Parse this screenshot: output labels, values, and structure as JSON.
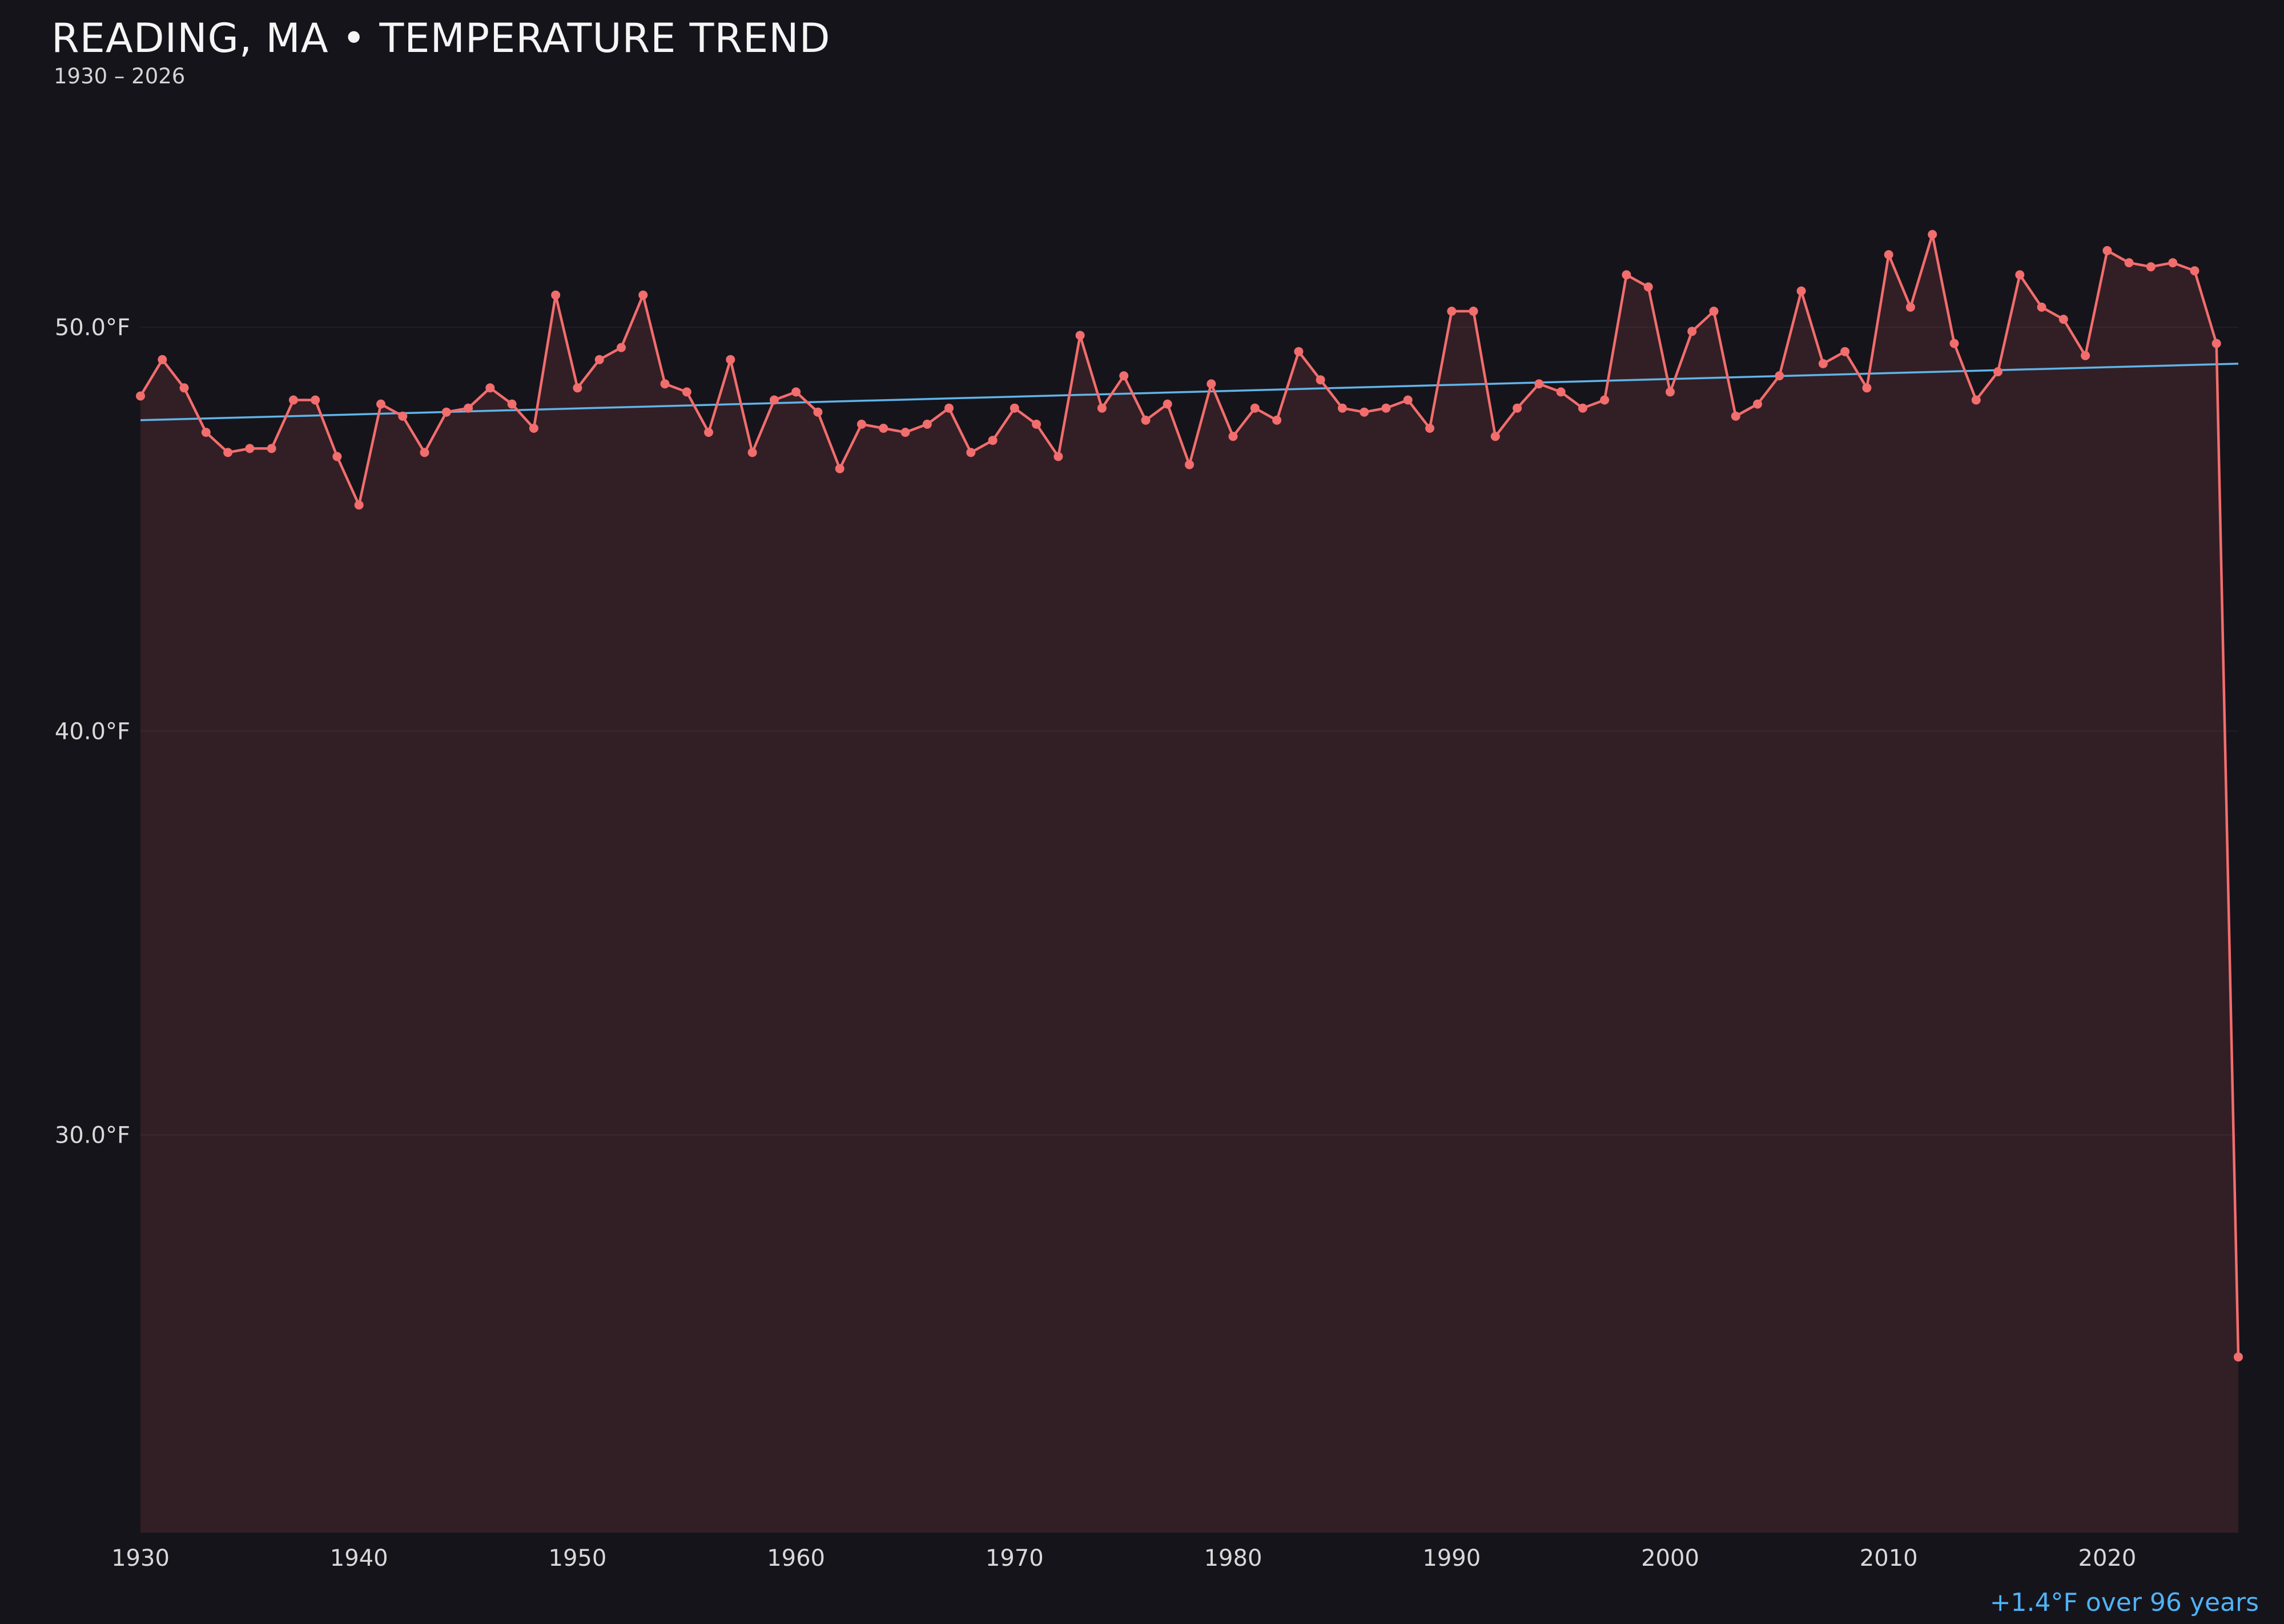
{
  "header": {
    "title": "READING, MA • TEMPERATURE TREND",
    "subtitle": "1930 – 2026"
  },
  "annotation": {
    "trend_summary": "+1.4°F over 96 years"
  },
  "colors": {
    "background": "#16141b",
    "line": "#f26d6d",
    "area_fill": "rgba(242,109,109,0.13)",
    "trend_line": "#5fb4e8",
    "annotation_text": "#4fb3f6",
    "tick_text": "#d9d9d9",
    "grid_line": "rgba(255,255,255,0.05)"
  },
  "chart_data": {
    "type": "line",
    "title": "READING, MA • TEMPERATURE TREND",
    "subtitle": "1930 – 2026",
    "xlabel": "",
    "ylabel": "",
    "xlim": [
      1930,
      2026
    ],
    "ylim": [
      20.15,
      55.25
    ],
    "grid": "faint-horizontal",
    "legend": "none",
    "x": [
      1930,
      1931,
      1932,
      1933,
      1934,
      1935,
      1936,
      1937,
      1938,
      1939,
      1940,
      1941,
      1942,
      1943,
      1944,
      1945,
      1946,
      1947,
      1948,
      1949,
      1950,
      1951,
      1952,
      1953,
      1954,
      1955,
      1956,
      1957,
      1958,
      1959,
      1960,
      1961,
      1962,
      1963,
      1964,
      1965,
      1966,
      1967,
      1968,
      1969,
      1970,
      1971,
      1972,
      1973,
      1974,
      1975,
      1976,
      1977,
      1978,
      1979,
      1980,
      1981,
      1982,
      1983,
      1984,
      1985,
      1986,
      1987,
      1988,
      1989,
      1990,
      1991,
      1992,
      1993,
      1994,
      1995,
      1996,
      1997,
      1998,
      1999,
      2000,
      2001,
      2002,
      2003,
      2004,
      2005,
      2006,
      2007,
      2008,
      2009,
      2010,
      2011,
      2012,
      2013,
      2014,
      2015,
      2016,
      2017,
      2018,
      2019,
      2020,
      2021,
      2022,
      2023,
      2024,
      2025,
      2026
    ],
    "series": [
      {
        "name": "Annual mean temperature (°F)",
        "values": [
          48.3,
          49.2,
          48.5,
          47.4,
          46.9,
          47.0,
          47.0,
          48.2,
          48.2,
          46.8,
          45.6,
          48.1,
          47.8,
          46.9,
          47.9,
          48.0,
          48.5,
          48.1,
          47.5,
          50.8,
          48.5,
          49.2,
          49.5,
          50.8,
          48.6,
          48.4,
          47.4,
          49.2,
          46.9,
          48.2,
          48.4,
          47.9,
          46.5,
          47.6,
          47.5,
          47.4,
          47.6,
          48.0,
          46.9,
          47.2,
          48.0,
          47.6,
          46.8,
          49.8,
          48.0,
          48.8,
          47.7,
          48.1,
          46.6,
          48.6,
          47.3,
          48.0,
          47.7,
          49.4,
          48.7,
          48.0,
          47.9,
          48.0,
          48.2,
          47.5,
          50.4,
          50.4,
          47.3,
          48.0,
          48.6,
          48.4,
          48.0,
          48.2,
          51.3,
          51.0,
          48.4,
          49.9,
          50.4,
          47.8,
          48.1,
          48.8,
          50.9,
          49.1,
          49.4,
          48.5,
          51.8,
          50.5,
          52.3,
          49.6,
          48.2,
          48.9,
          51.3,
          50.5,
          50.2,
          49.3,
          51.9,
          51.6,
          51.5,
          51.6,
          51.4,
          49.6,
          24.5
        ]
      }
    ],
    "trend": {
      "label": "+1.4°F over 96 years",
      "start_value": 47.7,
      "end_value": 49.1
    },
    "yticks": [
      {
        "value": 50,
        "label": "50.0°F"
      },
      {
        "value": 40,
        "label": "40.0°F"
      },
      {
        "value": 30,
        "label": "30.0°F"
      }
    ],
    "xticks": [
      {
        "value": 1930,
        "label": "1930"
      },
      {
        "value": 1940,
        "label": "1940"
      },
      {
        "value": 1950,
        "label": "1950"
      },
      {
        "value": 1960,
        "label": "1960"
      },
      {
        "value": 1970,
        "label": "1970"
      },
      {
        "value": 1980,
        "label": "1980"
      },
      {
        "value": 1990,
        "label": "1990"
      },
      {
        "value": 2000,
        "label": "2000"
      },
      {
        "value": 2010,
        "label": "2010"
      },
      {
        "value": 2020,
        "label": "2020"
      }
    ]
  }
}
